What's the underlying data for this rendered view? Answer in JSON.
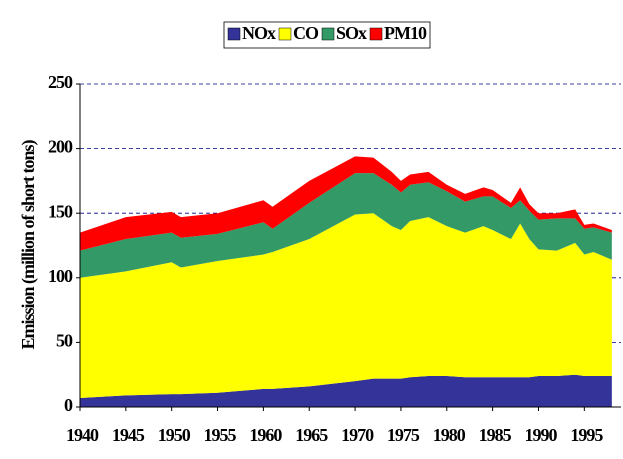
{
  "chart_data": {
    "type": "stacked_area",
    "y_label": "Emission (million of short tons)",
    "x": [
      1940,
      1945,
      1950,
      1951,
      1955,
      1960,
      1961,
      1965,
      1970,
      1972,
      1974,
      1975,
      1976,
      1978,
      1980,
      1982,
      1984,
      1985,
      1987,
      1988,
      1989,
      1990,
      1992,
      1994,
      1995,
      1996,
      1998
    ],
    "series": [
      {
        "name": "NOx",
        "color": "#333399",
        "values": [
          7,
          9,
          10,
          10,
          11,
          14,
          14,
          16,
          20,
          22,
          22,
          22,
          23,
          24,
          24,
          23,
          23,
          23,
          23,
          23,
          23,
          24,
          24,
          25,
          24,
          24,
          24
        ]
      },
      {
        "name": "CO",
        "color": "#ffff00",
        "values": [
          93,
          96,
          102,
          98,
          102,
          104,
          106,
          114,
          129,
          128,
          118,
          115,
          121,
          123,
          116,
          112,
          117,
          114,
          107,
          119,
          107,
          98,
          97,
          102,
          94,
          96,
          90
        ]
      },
      {
        "name": "SOx",
        "color": "#339966",
        "values": [
          21,
          25,
          23,
          23,
          21,
          25,
          18,
          28,
          32,
          31,
          32,
          29,
          28,
          27,
          27,
          24,
          23,
          26,
          24,
          18,
          22,
          23,
          25,
          19,
          20,
          19,
          21
        ]
      },
      {
        "name": "PM10",
        "color": "#ff0000",
        "values": [
          14,
          17,
          16,
          16,
          16,
          17,
          17,
          17,
          13,
          12,
          10,
          9,
          8,
          8,
          5,
          6,
          7,
          5,
          4,
          10,
          5,
          5,
          4,
          7,
          3,
          3,
          2
        ]
      }
    ],
    "xlim": [
      1940,
      1999
    ],
    "xticks": [
      1940,
      1945,
      1950,
      1955,
      1960,
      1965,
      1970,
      1975,
      1980,
      1985,
      1990,
      1995
    ],
    "ylim": [
      0,
      250
    ],
    "yticks": [
      0,
      50,
      100,
      150,
      200,
      250
    ],
    "grid": true,
    "legend": "top"
  }
}
